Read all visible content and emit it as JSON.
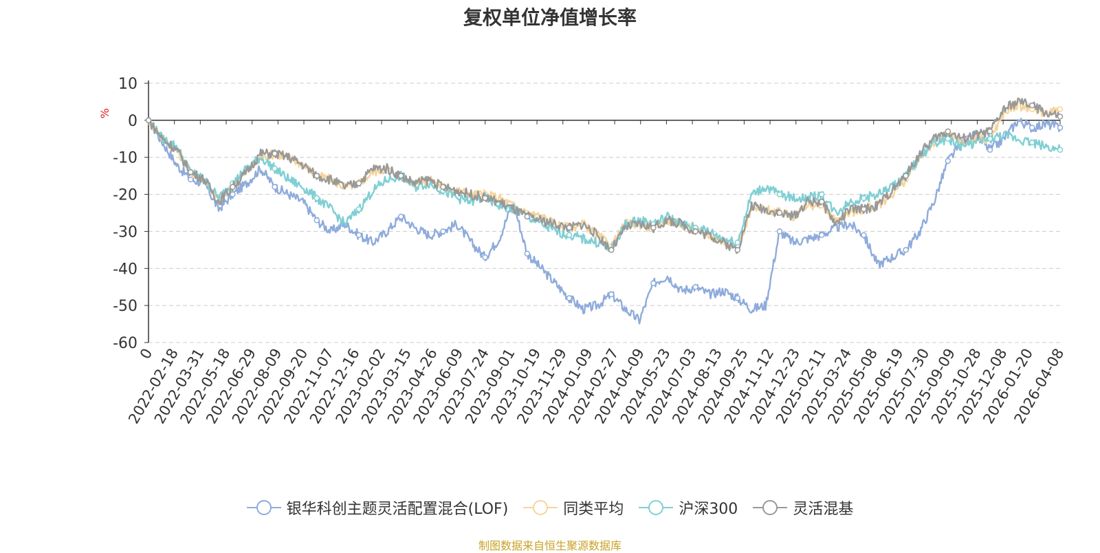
{
  "chart_data": {
    "type": "line",
    "title": "复权单位净值增长率",
    "ylabel": "%",
    "ylim": [
      -60,
      10
    ],
    "yticks": [
      10,
      0,
      -10,
      -20,
      -30,
      -40,
      -50,
      -60
    ],
    "x_start_label": "0",
    "x_tick_labels": [
      "2022-02-18",
      "2022-03-31",
      "2022-05-18",
      "2022-06-29",
      "2022-08-09",
      "2022-09-20",
      "2022-11-07",
      "2022-12-16",
      "2023-02-02",
      "2023-03-15",
      "2023-04-26",
      "2023-06-09",
      "2023-07-24",
      "2023-09-01",
      "2023-10-19",
      "2023-11-29",
      "2024-01-09",
      "2024-02-27",
      "2024-04-09",
      "2024-05-23",
      "2024-07-03",
      "2024-08-13",
      "2024-09-25",
      "2024-11-12",
      "2024-12-23",
      "2025-02-11",
      "2025-03-24",
      "2025-05-08",
      "2025-06-19",
      "2025-07-30",
      "2025-09-09",
      "2025-10-28",
      "2025-12-08",
      "2026-01-20",
      "2026-04-08"
    ],
    "series": [
      {
        "name": "银华科创主题灵活配置混合(LOF)",
        "color": "#8eabdb",
        "values": [
          0,
          -6,
          -12,
          -16,
          -17,
          -24,
          -20,
          -17,
          -13,
          -18,
          -20,
          -22,
          -27,
          -30,
          -28,
          -31,
          -33,
          -30,
          -26,
          -29,
          -31,
          -30,
          -28,
          -33,
          -37,
          -32,
          -22,
          -36,
          -40,
          -44,
          -48,
          -51,
          -50,
          -47,
          -51,
          -54,
          -44,
          -42,
          -46,
          -45,
          -47,
          -46,
          -48,
          -51,
          -50,
          -30,
          -33,
          -32,
          -31,
          -29,
          -28,
          -31,
          -39,
          -37,
          -35,
          -30,
          -22,
          -11,
          -6,
          -4,
          -8,
          -5,
          0,
          -2,
          -1,
          -2
        ]
      },
      {
        "name": "同类平均",
        "color": "#f7d49a",
        "values": [
          0,
          -5,
          -8,
          -14,
          -16,
          -22,
          -18,
          -14,
          -10,
          -9,
          -10,
          -12,
          -15,
          -16,
          -18,
          -17,
          -14,
          -13,
          -15,
          -17,
          -16,
          -18,
          -19,
          -20,
          -20,
          -21,
          -23,
          -25,
          -26,
          -28,
          -29,
          -28,
          -31,
          -34,
          -28,
          -28,
          -29,
          -27,
          -28,
          -30,
          -31,
          -33,
          -34,
          -24,
          -24,
          -25,
          -26,
          -23,
          -23,
          -27,
          -25,
          -24,
          -23,
          -20,
          -16,
          -10,
          -6,
          -4,
          -6,
          -5,
          -5,
          2,
          4,
          3,
          2,
          3
        ]
      },
      {
        "name": "沪深300",
        "color": "#7fcfd4",
        "values": [
          0,
          -5,
          -7,
          -14,
          -16,
          -21,
          -17,
          -13,
          -10,
          -13,
          -16,
          -18,
          -21,
          -24,
          -28,
          -24,
          -19,
          -16,
          -15,
          -18,
          -17,
          -19,
          -21,
          -22,
          -21,
          -23,
          -24,
          -26,
          -28,
          -30,
          -31,
          -32,
          -33,
          -35,
          -28,
          -27,
          -28,
          -26,
          -28,
          -29,
          -30,
          -32,
          -33,
          -20,
          -18,
          -20,
          -21,
          -21,
          -20,
          -25,
          -22,
          -21,
          -20,
          -18,
          -15,
          -10,
          -6,
          -5,
          -7,
          -6,
          -5,
          -4,
          -5,
          -6,
          -7,
          -8
        ]
      },
      {
        "name": "灵活混基",
        "color": "#999999",
        "values": [
          0,
          -5,
          -8,
          -14,
          -16,
          -22,
          -18,
          -14,
          -9,
          -9,
          -10,
          -12,
          -15,
          -16,
          -18,
          -17,
          -13,
          -13,
          -15,
          -17,
          -16,
          -18,
          -19,
          -20,
          -21,
          -22,
          -24,
          -26,
          -27,
          -28,
          -29,
          -28,
          -31,
          -35,
          -29,
          -28,
          -29,
          -27,
          -28,
          -30,
          -31,
          -33,
          -35,
          -23,
          -24,
          -25,
          -26,
          -22,
          -22,
          -28,
          -24,
          -24,
          -23,
          -19,
          -15,
          -9,
          -5,
          -3,
          -5,
          -4,
          -3,
          3,
          5,
          4,
          2,
          1
        ]
      }
    ]
  },
  "legend": {
    "items": [
      {
        "label": "银华科创主题灵活配置混合(LOF)"
      },
      {
        "label": "同类平均"
      },
      {
        "label": "沪深300"
      },
      {
        "label": "灵活混基"
      }
    ]
  },
  "source": {
    "text": "制图数据来自恒生聚源数据库",
    "color": "#c9a227"
  }
}
